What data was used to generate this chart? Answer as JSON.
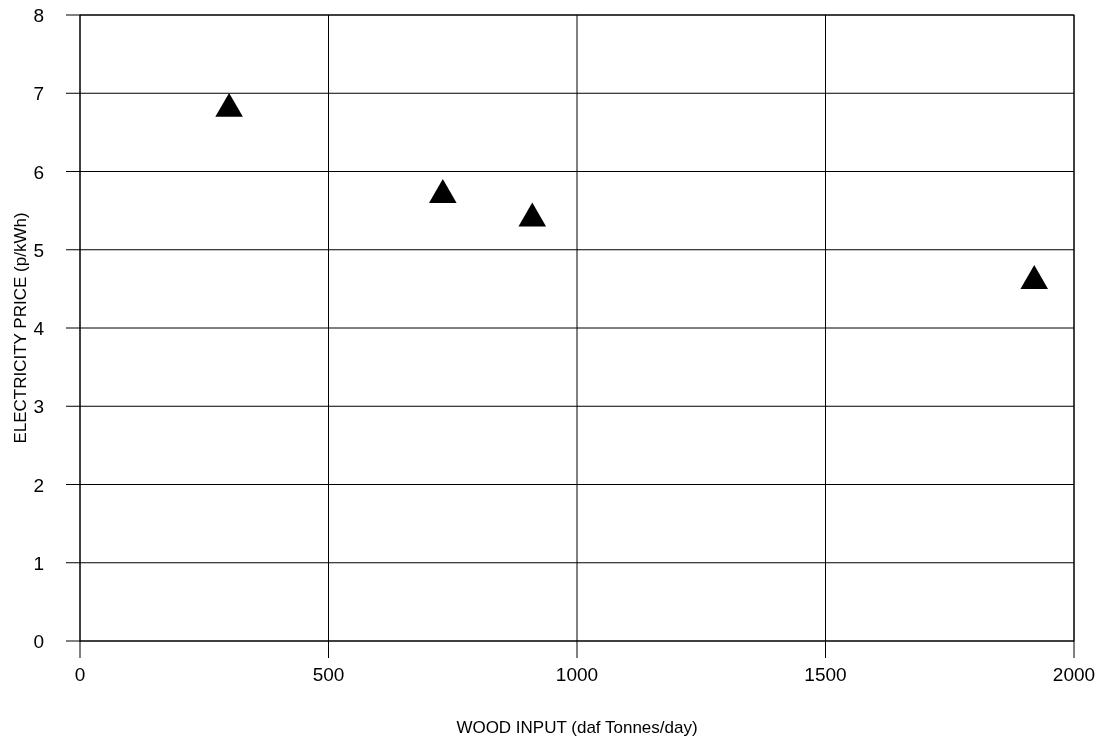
{
  "chart_data": {
    "type": "scatter",
    "xlabel": "WOOD INPUT (daf Tonnes/day)",
    "ylabel": "ELECTRICITY PRICE (p/kWh)",
    "x": [
      300,
      730,
      910,
      1920
    ],
    "series": [
      {
        "color": "#000000",
        "values": [
          6.8,
          5.7,
          5.4,
          4.6
        ]
      }
    ],
    "xlim": [
      0,
      2000
    ],
    "xticks": [
      0,
      500,
      1000,
      1500,
      2000
    ],
    "ylim": [
      0,
      8
    ],
    "yticks": [
      0,
      1,
      2,
      3,
      4,
      5,
      6,
      7,
      8
    ],
    "grid": true,
    "marker": "triangle"
  }
}
